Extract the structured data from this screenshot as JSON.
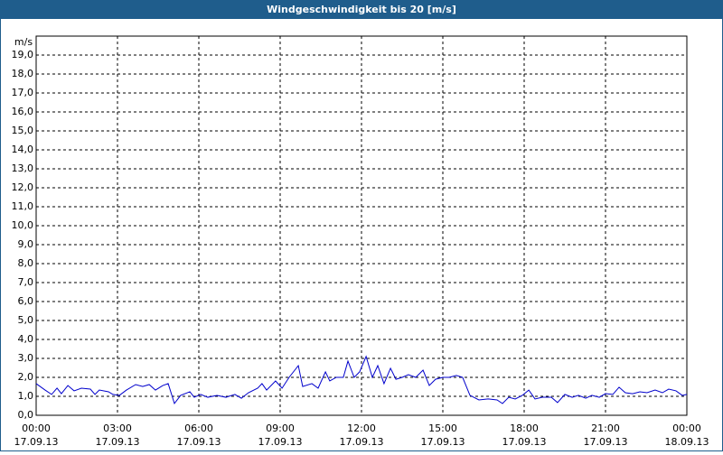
{
  "chart_data": {
    "type": "line",
    "title": "Windgeschwindigkeit bis 20 [m/s]",
    "y_label": "m/s",
    "xlim": [
      0,
      24
    ],
    "ylim": [
      0,
      20
    ],
    "grid": true,
    "xticks": [
      {
        "value": 0,
        "label": "00:00",
        "date": "17.09.13"
      },
      {
        "value": 3,
        "label": "03:00",
        "date": "17.09.13"
      },
      {
        "value": 6,
        "label": "06:00",
        "date": "17.09.13"
      },
      {
        "value": 9,
        "label": "09:00",
        "date": "17.09.13"
      },
      {
        "value": 12,
        "label": "12:00",
        "date": "17.09.13"
      },
      {
        "value": 15,
        "label": "15:00",
        "date": "17.09.13"
      },
      {
        "value": 18,
        "label": "18:00",
        "date": "17.09.13"
      },
      {
        "value": 21,
        "label": "21:00",
        "date": "17.09.13"
      },
      {
        "value": 24,
        "label": "00:00",
        "date": "18.09.13"
      }
    ],
    "yticks": [
      {
        "value": 0,
        "label": "0,0"
      },
      {
        "value": 1,
        "label": "1,0"
      },
      {
        "value": 2,
        "label": "2,0"
      },
      {
        "value": 3,
        "label": "3,0"
      },
      {
        "value": 4,
        "label": "4,0"
      },
      {
        "value": 5,
        "label": "5,0"
      },
      {
        "value": 6,
        "label": "6,0"
      },
      {
        "value": 7,
        "label": "7,0"
      },
      {
        "value": 8,
        "label": "8,0"
      },
      {
        "value": 9,
        "label": "9,0"
      },
      {
        "value": 10,
        "label": "10,0"
      },
      {
        "value": 11,
        "label": "11,0"
      },
      {
        "value": 12,
        "label": "12,0"
      },
      {
        "value": 13,
        "label": "13,0"
      },
      {
        "value": 14,
        "label": "14,0"
      },
      {
        "value": 15,
        "label": "15,0"
      },
      {
        "value": 16,
        "label": "16,0"
      },
      {
        "value": 17,
        "label": "17,0"
      },
      {
        "value": 18,
        "label": "18,0"
      },
      {
        "value": 19,
        "label": "19,0"
      }
    ],
    "x": [
      0,
      0.33,
      0.57,
      0.77,
      0.93,
      1.17,
      1.4,
      1.67,
      2.0,
      2.17,
      2.33,
      2.67,
      2.83,
      3.07,
      3.33,
      3.67,
      3.93,
      4.17,
      4.4,
      4.67,
      4.87,
      5.1,
      5.33,
      5.67,
      5.83,
      6.07,
      6.33,
      6.67,
      7.0,
      7.33,
      7.57,
      7.83,
      8.17,
      8.33,
      8.5,
      8.83,
      9.07,
      9.33,
      9.67,
      9.83,
      10.17,
      10.4,
      10.67,
      10.83,
      11.07,
      11.33,
      11.5,
      11.73,
      11.93,
      12.17,
      12.4,
      12.6,
      12.83,
      13.07,
      13.27,
      13.5,
      13.73,
      14.0,
      14.27,
      14.5,
      14.73,
      15.0,
      15.23,
      15.5,
      15.73,
      16.0,
      16.33,
      16.67,
      17.0,
      17.2,
      17.43,
      17.67,
      17.93,
      18.17,
      18.4,
      18.67,
      19.0,
      19.23,
      19.5,
      19.77,
      20.0,
      20.27,
      20.5,
      20.77,
      21.0,
      21.27,
      21.5,
      21.73,
      22.0,
      22.27,
      22.53,
      22.83,
      23.1,
      23.33,
      23.6,
      23.83,
      24.0
    ],
    "series": [
      {
        "color": "#0000cc",
        "values": [
          1.67,
          1.33,
          1.1,
          1.43,
          1.14,
          1.57,
          1.29,
          1.43,
          1.38,
          1.1,
          1.33,
          1.24,
          1.1,
          1.05,
          1.33,
          1.62,
          1.52,
          1.62,
          1.33,
          1.57,
          1.67,
          0.62,
          1.05,
          1.24,
          0.95,
          1.1,
          0.95,
          1.05,
          0.95,
          1.1,
          0.9,
          1.19,
          1.43,
          1.67,
          1.33,
          1.81,
          1.43,
          2.0,
          2.62,
          1.52,
          1.67,
          1.43,
          2.29,
          1.81,
          2.0,
          2.0,
          2.86,
          2.0,
          2.29,
          3.1,
          2.0,
          2.62,
          1.67,
          2.48,
          1.9,
          2.0,
          2.14,
          2.0,
          2.38,
          1.57,
          1.9,
          2.0,
          2.0,
          2.1,
          2.0,
          1.05,
          0.81,
          0.86,
          0.81,
          0.62,
          0.95,
          0.86,
          1.05,
          1.33,
          0.86,
          0.95,
          0.95,
          0.67,
          1.1,
          0.95,
          1.05,
          0.9,
          1.05,
          0.95,
          1.14,
          1.1,
          1.48,
          1.19,
          1.14,
          1.24,
          1.19,
          1.33,
          1.19,
          1.38,
          1.29,
          1.05,
          1.1
        ]
      }
    ]
  }
}
